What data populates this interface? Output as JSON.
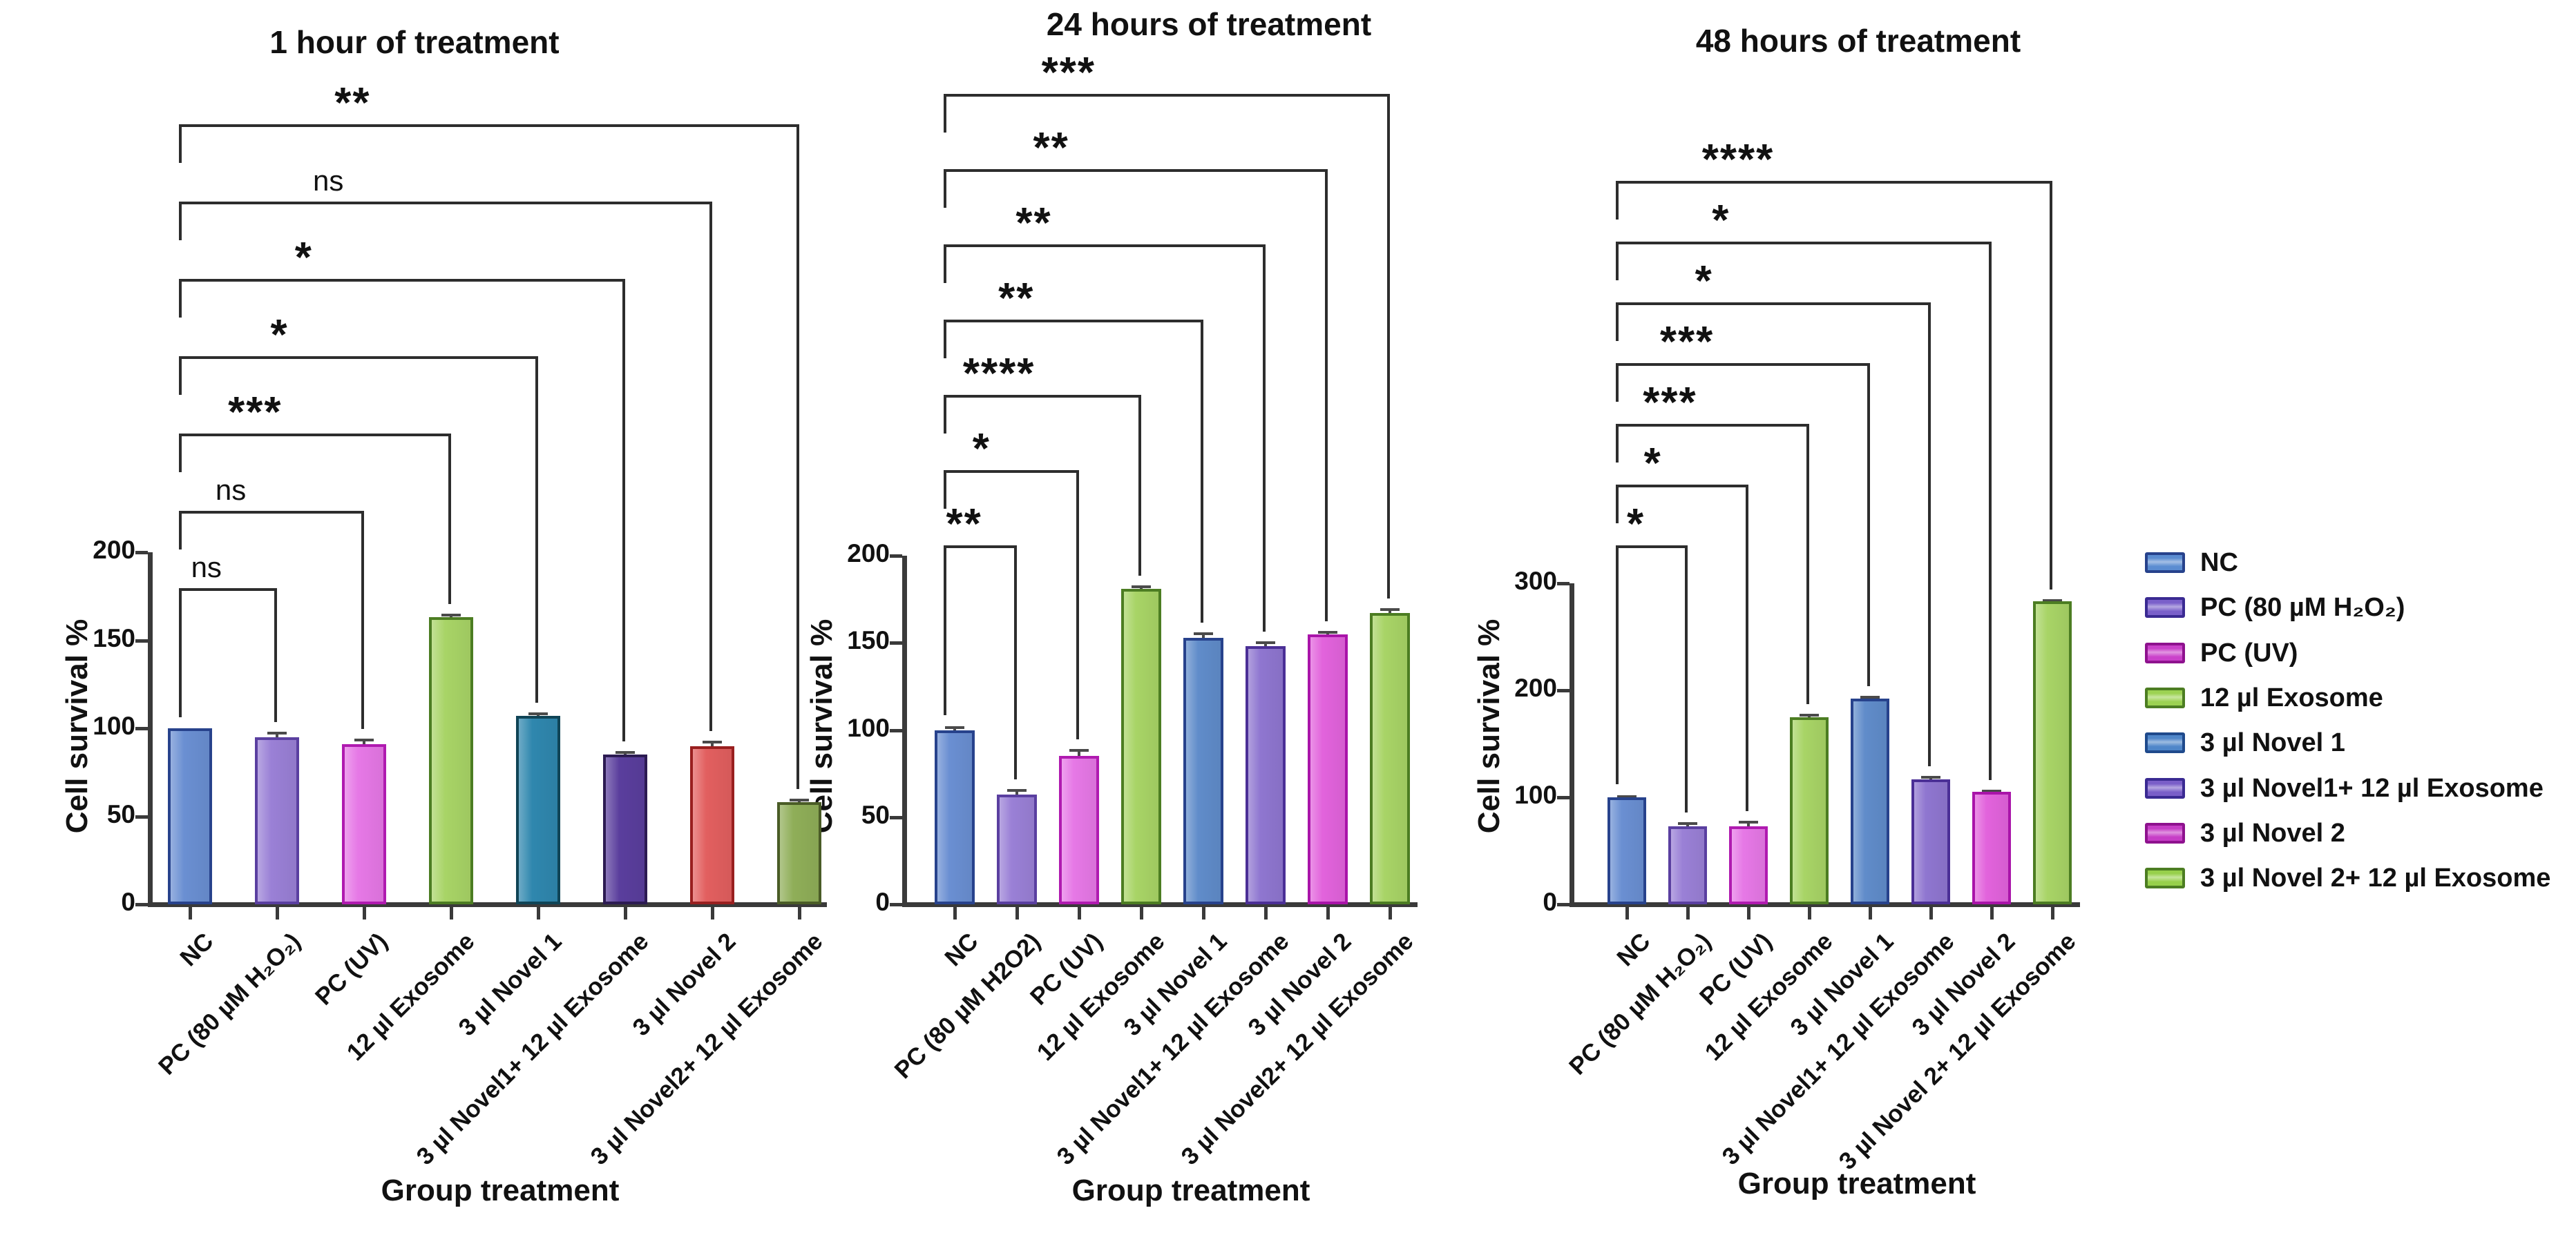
{
  "figure": {
    "background": "#ffffff"
  },
  "chart_data": [
    {
      "type": "bar",
      "title": "1 hour of treatment",
      "ylabel": "Cell survival %",
      "xlabel": "Group treatment",
      "ylim": [
        0,
        200
      ],
      "yticks": [
        0,
        50,
        100,
        150,
        200
      ],
      "grid": false,
      "categories": [
        "NC",
        "PC (80 µM H₂O₂)",
        "PC (UV)",
        "12 µl Exosome",
        "3 µl Novel 1",
        "3 µl Novel1+ 12 µl Exosome",
        "3 µl Novel 2",
        "3 µl Novel2+ 12 µl Exosome"
      ],
      "values": [
        100,
        95,
        91,
        163,
        107,
        85,
        90,
        58
      ],
      "errors": [
        0,
        3,
        3,
        2,
        2,
        2,
        3,
        2
      ],
      "bar_fills": [
        "#6a8fd2",
        "#9a80d6",
        "#e678e6",
        "#a8d466",
        "#2f87ae",
        "#5a3e9d",
        "#e25f5f",
        "#8fae58"
      ],
      "bar_borders": [
        "#27428c",
        "#5a3fa0",
        "#b01ab0",
        "#4c7d22",
        "#0f4456",
        "#2c1b52",
        "#991f1f",
        "#4a5c26"
      ],
      "significance": [
        {
          "from": "NC",
          "to": "PC (80 µM H₂O₂)",
          "label": "ns"
        },
        {
          "from": "NC",
          "to": "PC (UV)",
          "label": "ns"
        },
        {
          "from": "NC",
          "to": "12 µl Exosome",
          "label": "***"
        },
        {
          "from": "NC",
          "to": "3 µl Novel 1",
          "label": "*"
        },
        {
          "from": "NC",
          "to": "3 µl Novel1+ 12 µl Exosome",
          "label": "*"
        },
        {
          "from": "NC",
          "to": "3 µl Novel 2",
          "label": "ns"
        },
        {
          "from": "NC",
          "to": "3 µl Novel2+ 12 µl Exosome",
          "label": "**"
        }
      ]
    },
    {
      "type": "bar",
      "title": "24 hours of treatment",
      "ylabel": "Cell survival %",
      "xlabel": "Group treatment",
      "ylim": [
        0,
        200
      ],
      "yticks": [
        0,
        50,
        100,
        150,
        200
      ],
      "grid": false,
      "categories": [
        "NC",
        "PC (80 µM H2O2)",
        "PC (UV)",
        "12 µl Exosome",
        "3 µl Novel 1",
        "3 µl Novel1+ 12 µl Exosome",
        "3 µl Novel 2",
        "3 µl Novel2+ 12 µl Exosome"
      ],
      "values": [
        100,
        63,
        85,
        181,
        153,
        148,
        155,
        167
      ],
      "errors": [
        2,
        3,
        4,
        2,
        3,
        3,
        2,
        3
      ],
      "bar_fills": [
        "#6a8fd2",
        "#9a80d6",
        "#e678e6",
        "#a8d466",
        "#608cca",
        "#8f76d0",
        "#e263dc",
        "#a8d466"
      ],
      "bar_borders": [
        "#27428c",
        "#5a3fa0",
        "#b01ab0",
        "#4c7d22",
        "#27428c",
        "#4b2f96",
        "#a914a9",
        "#4c7d22"
      ],
      "significance": [
        {
          "from": "NC",
          "to": "PC (80 µM H2O2)",
          "label": "**"
        },
        {
          "from": "NC",
          "to": "PC (UV)",
          "label": "*"
        },
        {
          "from": "NC",
          "to": "12 µl Exosome",
          "label": "****"
        },
        {
          "from": "NC",
          "to": "3 µl Novel 1",
          "label": "**"
        },
        {
          "from": "NC",
          "to": "3 µl Novel1+ 12 µl Exosome",
          "label": "**"
        },
        {
          "from": "NC",
          "to": "3 µl Novel 2",
          "label": "**"
        },
        {
          "from": "NC",
          "to": "3 µl Novel2+ 12 µl Exosome",
          "label": "***"
        }
      ]
    },
    {
      "type": "bar",
      "title": "48 hours of treatment",
      "ylabel": "Cell survival %",
      "xlabel": "Group treatment",
      "ylim": [
        0,
        300
      ],
      "yticks": [
        0,
        100,
        200,
        300
      ],
      "grid": false,
      "categories": [
        "NC",
        "PC (80 µM H₂O₂)",
        "PC (UV)",
        "12 µl Exosome",
        "3 µl Novel 1",
        "3 µl Novel1+ 12 µl Exosome",
        "3 µl Novel 2",
        "3 µl Novel 2+ 12 µl Exosome"
      ],
      "values": [
        100,
        73,
        73,
        175,
        192,
        117,
        105,
        283
      ],
      "errors": [
        2,
        4,
        5,
        3,
        3,
        3,
        2,
        2
      ],
      "bar_fills": [
        "#6a8fd2",
        "#9a80d6",
        "#e678e6",
        "#a8d466",
        "#608cca",
        "#8f76d0",
        "#e263dc",
        "#a8d466"
      ],
      "bar_borders": [
        "#27428c",
        "#5a3fa0",
        "#b01ab0",
        "#4c7d22",
        "#27428c",
        "#4b2f96",
        "#a914a9",
        "#4c7d22"
      ],
      "significance": [
        {
          "from": "NC",
          "to": "PC (80 µM H₂O₂)",
          "label": "*"
        },
        {
          "from": "NC",
          "to": "PC (UV)",
          "label": "*"
        },
        {
          "from": "NC",
          "to": "12 µl Exosome",
          "label": "***"
        },
        {
          "from": "NC",
          "to": "3 µl Novel 1",
          "label": "***"
        },
        {
          "from": "NC",
          "to": "3 µl Novel1+ 12 µl Exosome",
          "label": "*"
        },
        {
          "from": "NC",
          "to": "3 µl Novel 2",
          "label": "*"
        },
        {
          "from": "NC",
          "to": "3 µl Novel 2+ 12 µl Exosome",
          "label": "****"
        }
      ]
    }
  ],
  "legend": {
    "items": [
      {
        "label": "NC",
        "fill": "#5b8cd1",
        "border": "#27428c"
      },
      {
        "label": "PC (80 µM H₂O₂)",
        "fill": "#7a60ca",
        "border": "#3a2a92"
      },
      {
        "label": "PC (UV)",
        "fill": "#ca41ca",
        "border": "#8e128e"
      },
      {
        "label": "12 µl Exosome",
        "fill": "#9cd252",
        "border": "#4c7d22"
      },
      {
        "label": "3 µl Novel 1",
        "fill": "#4f86c9",
        "border": "#1f4a8c"
      },
      {
        "label": "3 µl Novel1+ 12 µl Exosome",
        "fill": "#7a5ec8",
        "border": "#3a2a92"
      },
      {
        "label": "3 µl Novel 2",
        "fill": "#c63dc6",
        "border": "#8e128e"
      },
      {
        "label": "3 µl Novel 2+ 12 µl Exosome",
        "fill": "#97d04b",
        "border": "#4c7d22"
      }
    ]
  }
}
